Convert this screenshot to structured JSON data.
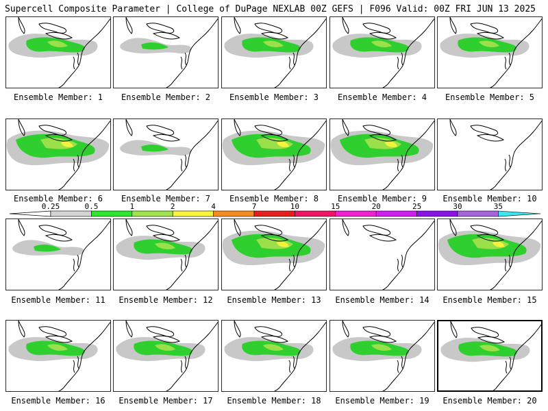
{
  "header": {
    "title": "Supercell Composite Parameter | College of DuPage NEXLAB",
    "run_info": "00Z GEFS | F096 Valid: 00Z FRI JUN 13 2025"
  },
  "colors": {
    "gray": "#c8c8c8",
    "green": "#2ecf2e",
    "lightgreen": "#9be04a",
    "yellow": "#f5f23a",
    "coast": "#000000"
  },
  "colorbar": {
    "ticks": [
      "0.25",
      "0.5",
      "1",
      "2",
      "4",
      "7",
      "10",
      "15",
      "20",
      "25",
      "30",
      "35"
    ],
    "colors": [
      "#d4d4d4",
      "#2ee62e",
      "#a0e34d",
      "#f7f53d",
      "#f78c1e",
      "#e61e1e",
      "#f01468",
      "#f020d2",
      "#d21ef0",
      "#8a14e6",
      "#a664dc",
      "#3ce6f0"
    ]
  },
  "members": [
    {
      "label": "Ensemble Member: 1",
      "intensity": 2
    },
    {
      "label": "Ensemble Member: 2",
      "intensity": 1
    },
    {
      "label": "Ensemble Member: 3",
      "intensity": 2
    },
    {
      "label": "Ensemble Member: 4",
      "intensity": 2
    },
    {
      "label": "Ensemble Member: 5",
      "intensity": 2
    },
    {
      "label": "Ensemble Member: 6",
      "intensity": 3
    },
    {
      "label": "Ensemble Member: 7",
      "intensity": 1
    },
    {
      "label": "Ensemble Member: 8",
      "intensity": 3
    },
    {
      "label": "Ensemble Member: 9",
      "intensity": 3
    },
    {
      "label": "Ensemble Member: 10",
      "intensity": 0
    },
    {
      "label": "Ensemble Member: 11",
      "intensity": 1
    },
    {
      "label": "Ensemble Member: 12",
      "intensity": 2
    },
    {
      "label": "Ensemble Member: 13",
      "intensity": 3
    },
    {
      "label": "Ensemble Member: 14",
      "intensity": 0
    },
    {
      "label": "Ensemble Member: 15",
      "intensity": 3
    },
    {
      "label": "Ensemble Member: 16",
      "intensity": 2
    },
    {
      "label": "Ensemble Member: 17",
      "intensity": 2
    },
    {
      "label": "Ensemble Member: 18",
      "intensity": 2
    },
    {
      "label": "Ensemble Member: 19",
      "intensity": 2
    },
    {
      "label": "Ensemble Member: 20",
      "intensity": 2,
      "selected": true
    }
  ]
}
